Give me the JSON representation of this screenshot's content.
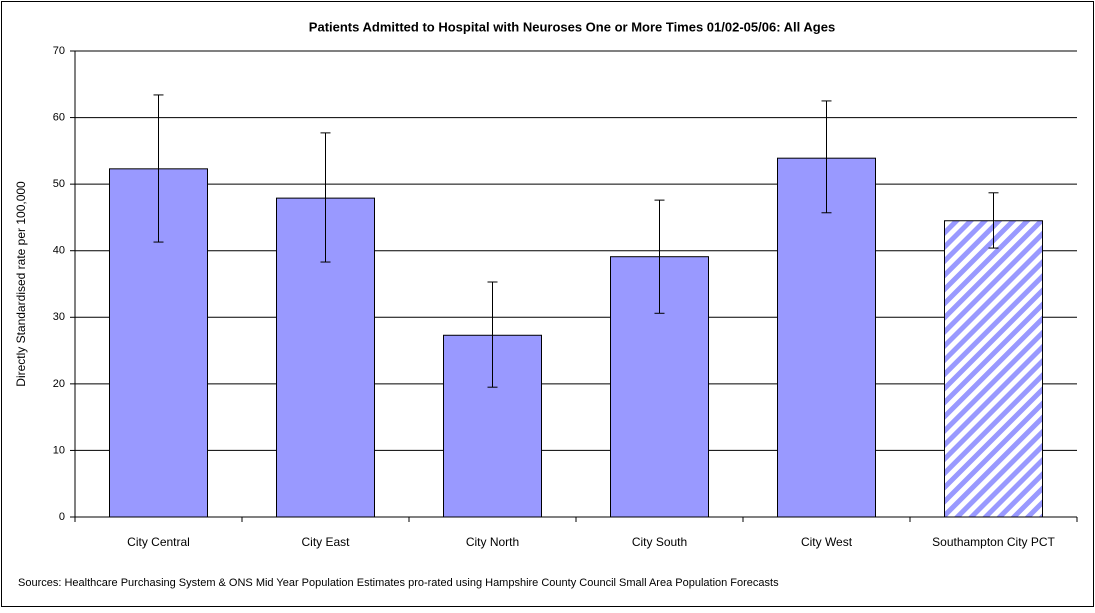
{
  "chart_data": {
    "type": "bar",
    "title": "Patients Admitted to Hospital with Neuroses One or More Times 01/02-05/06: All Ages",
    "y_label": "Directly Standardised rate per 100,000",
    "source": "Sources: Healthcare Purchasing System & ONS Mid Year Population Estimates pro-rated using Hampshire County Council Small Area Population Forecasts",
    "categories": [
      "City Central",
      "City East",
      "City North",
      "City South",
      "City West",
      "Southampton City PCT"
    ],
    "values": [
      52.3,
      47.9,
      27.3,
      39.1,
      53.9,
      44.5
    ],
    "ci_lower": [
      41.3,
      38.3,
      19.5,
      30.6,
      45.7,
      40.4
    ],
    "ci_upper": [
      63.4,
      57.7,
      35.3,
      47.6,
      62.5,
      48.7
    ],
    "hatched": [
      false,
      false,
      false,
      false,
      false,
      true
    ],
    "color": "#9999ff",
    "ylim": [
      0,
      70
    ],
    "yticks": [
      0,
      10,
      20,
      30,
      40,
      50,
      60,
      70
    ],
    "grid": true
  }
}
